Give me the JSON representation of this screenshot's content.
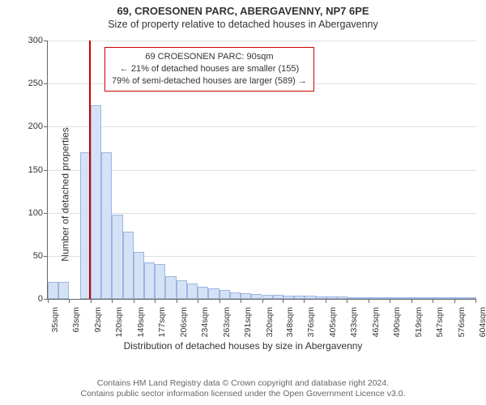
{
  "header": {
    "address": "69, CROESONEN PARC, ABERGAVENNY, NP7 6PE",
    "subtitle": "Size of property relative to detached houses in Abergavenny"
  },
  "info_box": {
    "line1": "69 CROESONEN PARC: 90sqm",
    "line2": "← 21% of detached houses are smaller (155)",
    "line3": "79% of semi-detached houses are larger (589) →",
    "border_color": "#cc0000",
    "background_color": "#ffffff",
    "fontsize": 11
  },
  "chart": {
    "type": "histogram",
    "ylabel": "Number of detached properties",
    "xlabel": "Distribution of detached houses by size in Abergavenny",
    "background_color": "#ffffff",
    "grid_color": "#e0e0e0",
    "axis_color": "#666666",
    "bar_fill": "#d5e2f6",
    "bar_border": "#9bb6e0",
    "marker_color": "#cc0000",
    "marker_value": 90,
    "ylim": [
      0,
      300
    ],
    "yticks": [
      0,
      50,
      100,
      150,
      200,
      250,
      300
    ],
    "x_start": 35,
    "x_bin_width": 14.25,
    "xticks": [
      "35sqm",
      "63sqm",
      "92sqm",
      "120sqm",
      "149sqm",
      "177sqm",
      "206sqm",
      "234sqm",
      "263sqm",
      "291sqm",
      "320sqm",
      "348sqm",
      "376sqm",
      "405sqm",
      "433sqm",
      "462sqm",
      "490sqm",
      "519sqm",
      "547sqm",
      "576sqm",
      "604sqm"
    ],
    "xtick_values": [
      35,
      63,
      92,
      120,
      149,
      177,
      206,
      234,
      263,
      291,
      320,
      348,
      376,
      405,
      433,
      462,
      490,
      519,
      547,
      576,
      604
    ],
    "values": [
      20,
      20,
      0,
      170,
      225,
      170,
      98,
      78,
      55,
      42,
      40,
      26,
      22,
      18,
      14,
      12,
      10,
      8,
      7,
      6,
      5,
      5,
      4,
      4,
      4,
      3,
      3,
      3,
      2,
      2,
      2,
      2,
      2,
      2,
      1,
      1,
      1,
      1,
      1,
      1
    ],
    "label_fontsize": 12,
    "tick_fontsize": 11
  },
  "caption": {
    "line1": "Contains HM Land Registry data © Crown copyright and database right 2024.",
    "line2": "Contains public sector information licensed under the Open Government Licence v3.0.",
    "color": "#666666",
    "fontsize": 10.5
  }
}
